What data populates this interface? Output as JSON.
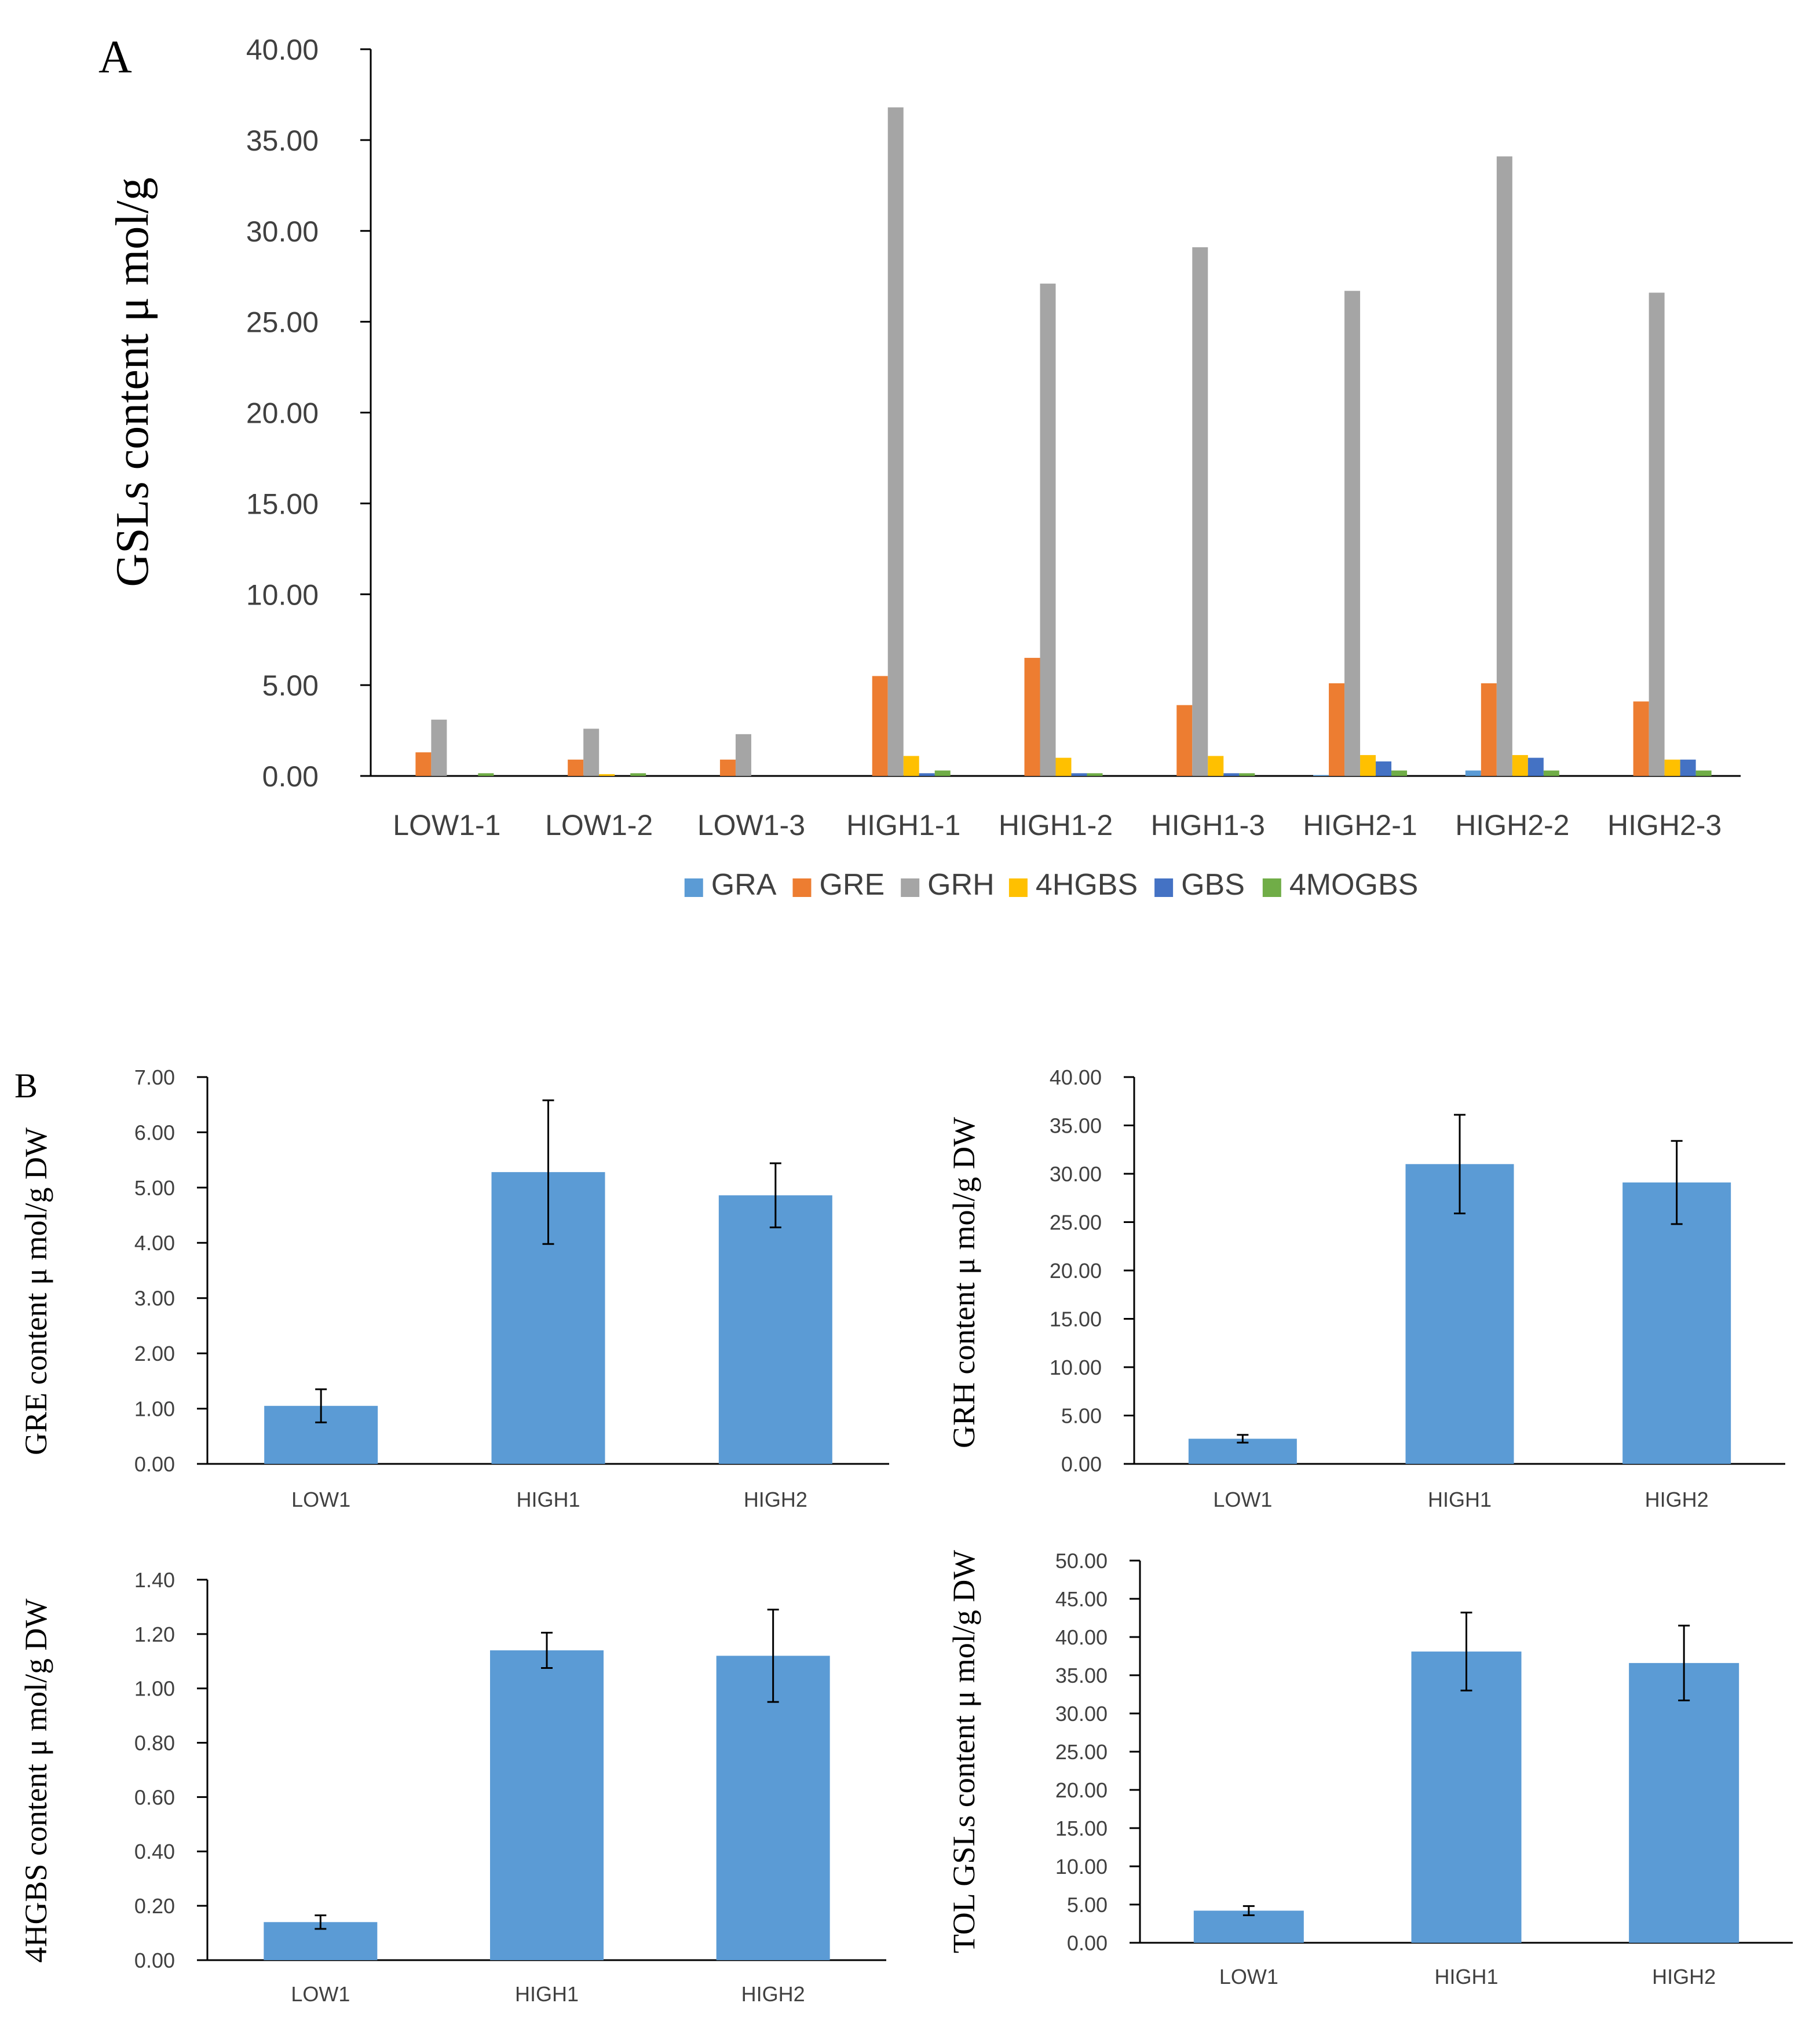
{
  "panels": {
    "a_label": "A",
    "b_label": "B"
  },
  "chart_data": [
    {
      "id": "A",
      "type": "bar",
      "ylabel": "GSLs content μ mol/g",
      "xlabel": "",
      "ylim": [
        0,
        40
      ],
      "yticks": [
        "0.00",
        "5.00",
        "10.00",
        "15.00",
        "20.00",
        "25.00",
        "30.00",
        "35.00",
        "40.00"
      ],
      "categories": [
        "LOW1-1",
        "LOW1-2",
        "LOW1-3",
        "HIGH1-1",
        "HIGH1-2",
        "HIGH1-3",
        "HIGH2-1",
        "HIGH2-2",
        "HIGH2-3"
      ],
      "legend_position": "bottom",
      "series": [
        {
          "name": "GRA",
          "color": "#5b9bd5",
          "values": [
            0.0,
            0.0,
            0.0,
            0.0,
            0.0,
            0.0,
            0.05,
            0.3,
            0.0
          ]
        },
        {
          "name": "GRE",
          "color": "#ed7d31",
          "values": [
            1.3,
            0.9,
            0.9,
            5.5,
            6.5,
            3.9,
            5.1,
            5.1,
            4.1
          ]
        },
        {
          "name": "GRH",
          "color": "#a5a5a5",
          "values": [
            3.1,
            2.6,
            2.3,
            36.8,
            27.1,
            29.1,
            26.7,
            34.1,
            26.6
          ]
        },
        {
          "name": "4HGBS",
          "color": "#ffc000",
          "values": [
            0.0,
            0.1,
            0.0,
            1.1,
            1.0,
            1.1,
            1.15,
            1.15,
            0.9
          ]
        },
        {
          "name": "GBS",
          "color": "#4472c4",
          "values": [
            0.0,
            0.0,
            0.0,
            0.15,
            0.15,
            0.15,
            0.8,
            1.0,
            0.9
          ]
        },
        {
          "name": "4MOGBS",
          "color": "#70ad47",
          "values": [
            0.15,
            0.15,
            0.0,
            0.3,
            0.15,
            0.15,
            0.3,
            0.3,
            0.3
          ]
        }
      ]
    },
    {
      "id": "B1",
      "type": "bar",
      "ylabel": "GRE content μ mol/g DW",
      "xlabel": "",
      "ylim": [
        0,
        7
      ],
      "yticks": [
        "0.00",
        "1.00",
        "2.00",
        "3.00",
        "4.00",
        "5.00",
        "6.00",
        "7.00"
      ],
      "categories": [
        "LOW1",
        "HIGH1",
        "HIGH2"
      ],
      "values": [
        1.05,
        5.28,
        4.86
      ],
      "errors": [
        0.3,
        1.3,
        0.58
      ],
      "color": "#5b9bd5"
    },
    {
      "id": "B2",
      "type": "bar",
      "ylabel": "GRH content μ mol/g DW",
      "xlabel": "",
      "ylim": [
        0,
        40
      ],
      "yticks": [
        "0.00",
        "5.00",
        "10.00",
        "15.00",
        "20.00",
        "25.00",
        "30.00",
        "35.00",
        "40.00"
      ],
      "categories": [
        "LOW1",
        "HIGH1",
        "HIGH2"
      ],
      "values": [
        2.6,
        31.0,
        29.1
      ],
      "errors": [
        0.4,
        5.1,
        4.3
      ],
      "color": "#5b9bd5"
    },
    {
      "id": "B3",
      "type": "bar",
      "ylabel": "4HGBS content μ mol/g DW",
      "xlabel": "",
      "ylim": [
        0,
        1.4
      ],
      "yticks": [
        "0.00",
        "0.20",
        "0.40",
        "0.60",
        "0.80",
        "1.00",
        "1.20",
        "1.40"
      ],
      "categories": [
        "LOW1",
        "HIGH1",
        "HIGH2"
      ],
      "values": [
        0.14,
        1.14,
        1.12
      ],
      "errors": [
        0.025,
        0.065,
        0.17
      ],
      "color": "#5b9bd5"
    },
    {
      "id": "B4",
      "type": "bar",
      "ylabel": "TOL GSLs content μ mol/g DW",
      "xlabel": "",
      "ylim": [
        0,
        50
      ],
      "yticks": [
        "0.00",
        "5.00",
        "10.00",
        "15.00",
        "20.00",
        "25.00",
        "30.00",
        "35.00",
        "40.00",
        "45.00",
        "50.00"
      ],
      "categories": [
        "LOW1",
        "HIGH1",
        "HIGH2"
      ],
      "values": [
        4.2,
        38.1,
        36.6
      ],
      "errors": [
        0.6,
        5.1,
        4.9
      ],
      "color": "#5b9bd5"
    }
  ]
}
